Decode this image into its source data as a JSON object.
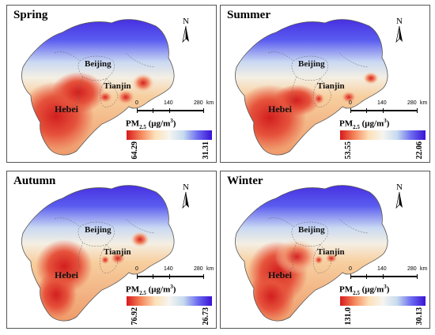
{
  "panels": [
    {
      "season": "Spring",
      "max": "64.29",
      "min": "31.31"
    },
    {
      "season": "Summer",
      "max": "53.55",
      "min": "22.06"
    },
    {
      "season": "Autumn",
      "max": "76.92",
      "min": "26.73"
    },
    {
      "season": "Winter",
      "max": "131.0",
      "min": "30.13"
    }
  ],
  "labels": {
    "beijing": "Beijing",
    "tianjin": "Tianjin",
    "hebei": "Hebei",
    "north": "N",
    "legend_title": "PM",
    "legend_sub": "2.5",
    "legend_unit": " (μg/m",
    "legend_sup": "3",
    "legend_close": ")",
    "scale": [
      "0",
      "140",
      "280",
      "km"
    ]
  },
  "colors": {
    "high": "#d7191c",
    "mid": "#fde0b7",
    "low": "#3a12d6"
  }
}
